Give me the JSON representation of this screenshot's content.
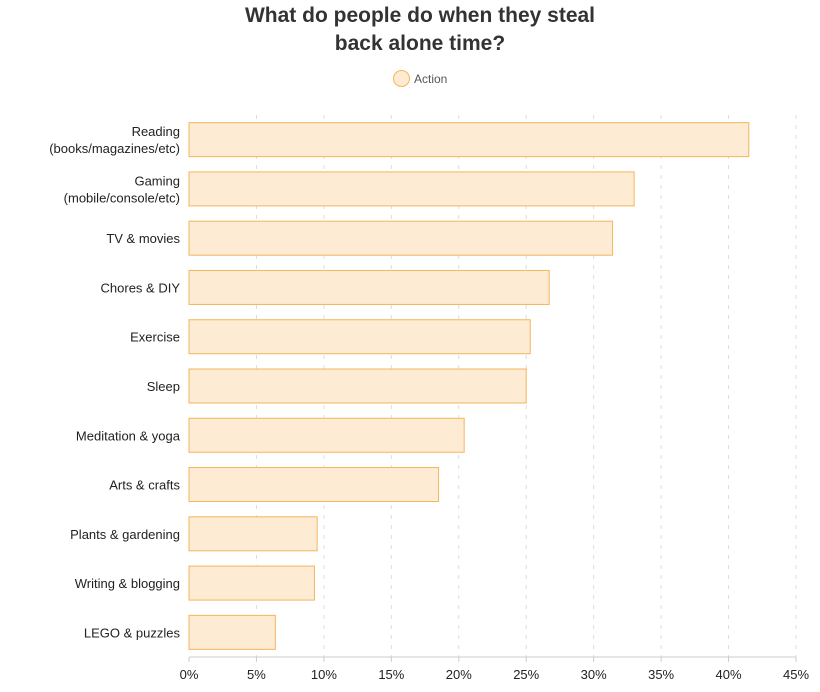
{
  "chart_data": {
    "type": "bar",
    "orientation": "horizontal",
    "title": "What do people do when they steal back alone time?",
    "title_lines": [
      "What do people do when they steal",
      "back alone time?"
    ],
    "legend": [
      "Action"
    ],
    "legend_placement": "top",
    "categories": [
      [
        "Reading",
        "(books/magazines/etc)"
      ],
      [
        "Gaming",
        "(mobile/console/etc)"
      ],
      [
        "TV & movies"
      ],
      [
        "Chores & DIY"
      ],
      [
        "Exercise"
      ],
      [
        "Sleep"
      ],
      [
        "Meditation & yoga"
      ],
      [
        "Arts & crafts"
      ],
      [
        "Plants & gardening"
      ],
      [
        "Writing & blogging"
      ],
      [
        "LEGO & puzzles"
      ]
    ],
    "series": [
      {
        "name": "Action",
        "values": [
          41.5,
          33.0,
          31.4,
          26.7,
          25.3,
          25.0,
          20.4,
          18.5,
          9.5,
          9.3,
          6.4
        ]
      }
    ],
    "xlim": [
      0,
      45
    ],
    "xticks": [
      "0%",
      "5%",
      "10%",
      "15%",
      "20%",
      "25%",
      "30%",
      "35%",
      "40%",
      "45%"
    ],
    "grid": "vertical dashed",
    "colors": {
      "fill": "#fdebd3",
      "stroke": "#f5b55a"
    }
  }
}
